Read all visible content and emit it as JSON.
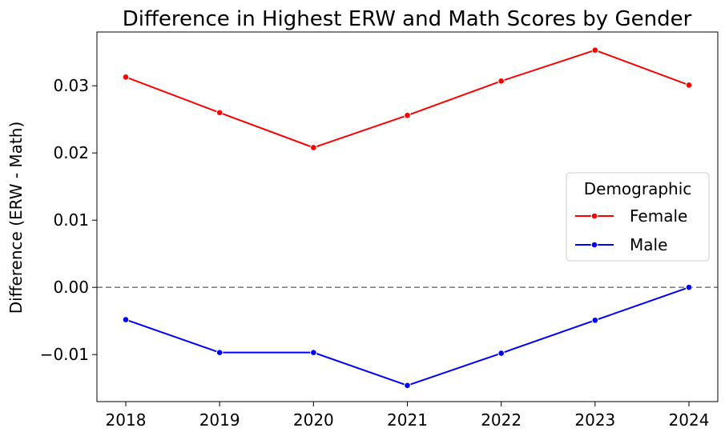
{
  "chart_data": {
    "type": "line",
    "title": "Difference in Highest ERW and Math Scores by Gender",
    "xlabel": "",
    "ylabel": "Difference (ERW - Math)",
    "categories": [
      "2018",
      "2019",
      "2020",
      "2021",
      "2022",
      "2023",
      "2024"
    ],
    "ylim": [
      -0.017,
      0.038
    ],
    "yticks": [
      -0.01,
      0.0,
      0.01,
      0.02,
      0.03
    ],
    "ytick_labels": [
      "−0.01",
      "0.00",
      "0.01",
      "0.02",
      "0.03"
    ],
    "reference_line": {
      "y": 0.0,
      "style": "dashed",
      "color": "#808080"
    },
    "grid": false,
    "legend": {
      "title": "Demographic",
      "placement": "center-right"
    },
    "series": [
      {
        "name": "Female",
        "color": "#ff0000",
        "values": [
          0.0313,
          0.026,
          0.0208,
          0.0256,
          0.0307,
          0.0353,
          0.0301
        ]
      },
      {
        "name": "Male",
        "color": "#0000ff",
        "values": [
          -0.0048,
          -0.0097,
          -0.0097,
          -0.0146,
          -0.0098,
          -0.0049,
          0.0
        ]
      }
    ]
  }
}
